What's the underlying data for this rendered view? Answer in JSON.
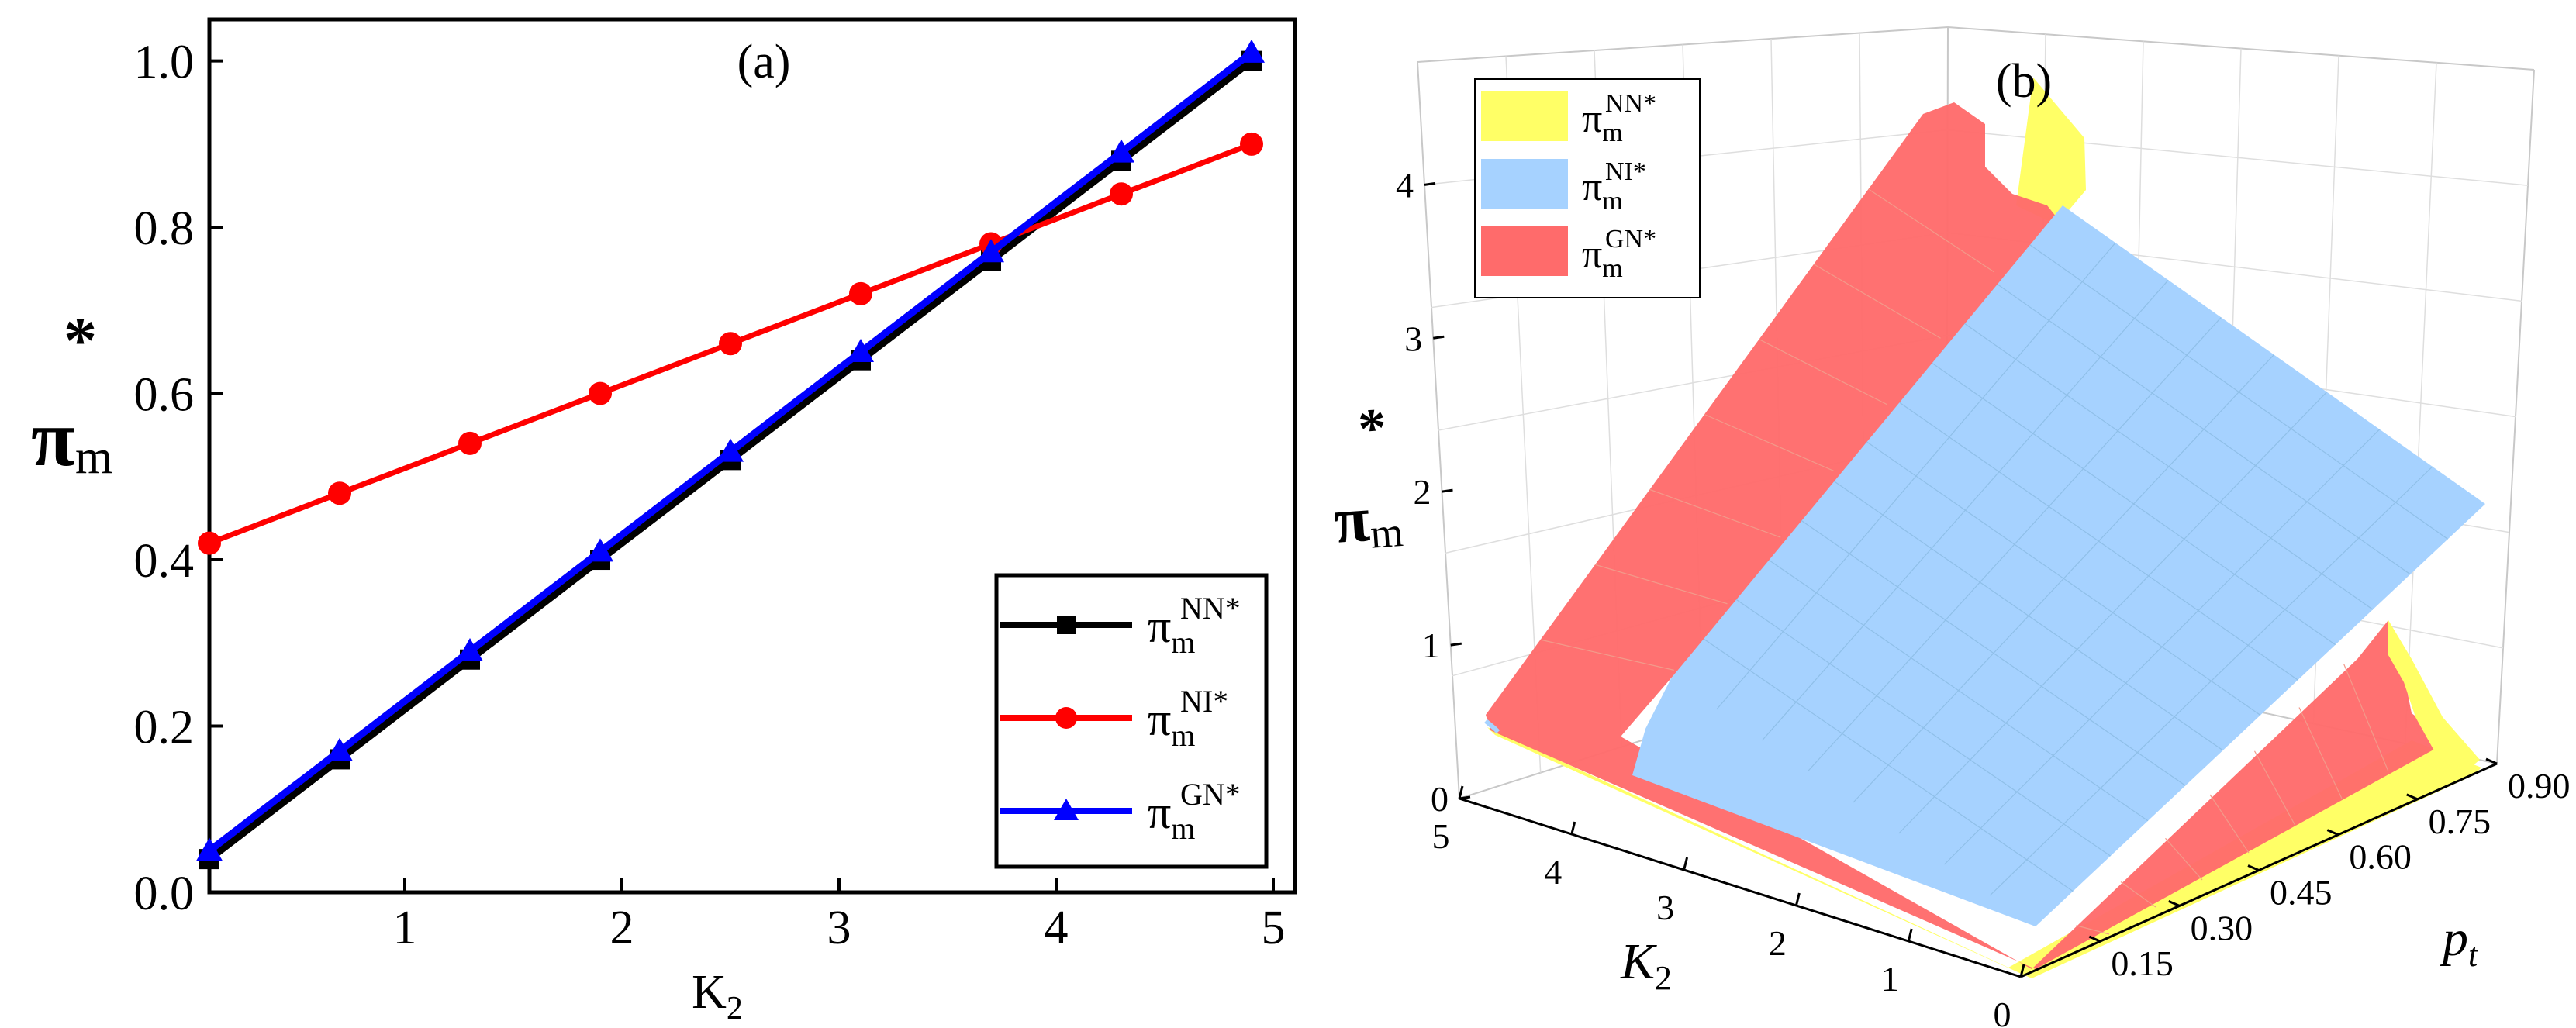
{
  "chart_data": [
    {
      "panel": "(a)",
      "type": "line",
      "xlabel": "K",
      "xlabel_sub": "2",
      "ylabel": "π",
      "ylabel_sub": "m",
      "ylabel_sup": "*",
      "xlim": [
        0.1,
        5.1
      ],
      "ylim": [
        0.0,
        1.05
      ],
      "xticks": [
        1,
        2,
        3,
        4,
        5
      ],
      "yticks": [
        0.0,
        0.2,
        0.4,
        0.6,
        0.8,
        1.0
      ],
      "xtick_labels": [
        "1",
        "2",
        "3",
        "4",
        "5"
      ],
      "ytick_labels": [
        "0.0",
        "0.2",
        "0.4",
        "0.6",
        "0.8",
        "1.0"
      ],
      "grid": false,
      "legend_position": "bottom-right",
      "x": [
        0.1,
        0.7,
        1.3,
        1.9,
        2.5,
        3.1,
        3.7,
        4.3,
        4.9
      ],
      "series": [
        {
          "name": "NN*",
          "base": "π",
          "sub": "m",
          "sup": "NN*",
          "color": "#000000",
          "marker": "square",
          "values": [
            0.04,
            0.16,
            0.28,
            0.4,
            0.52,
            0.64,
            0.76,
            0.88,
            1.0
          ]
        },
        {
          "name": "NI*",
          "base": "π",
          "sub": "m",
          "sup": "NI*",
          "color": "#ff0000",
          "marker": "circle",
          "values": [
            0.42,
            0.48,
            0.54,
            0.6,
            0.66,
            0.72,
            0.78,
            0.84,
            0.9
          ]
        },
        {
          "name": "GN*",
          "base": "π",
          "sub": "m",
          "sup": "GN*",
          "color": "#0000ff",
          "marker": "triangle",
          "values": [
            0.05,
            0.17,
            0.29,
            0.41,
            0.53,
            0.65,
            0.77,
            0.89,
            1.01
          ]
        }
      ]
    },
    {
      "panel": "(b)",
      "type": "surface3d",
      "zlabel": "π",
      "zlabel_sub": "m",
      "zlabel_sup": "*",
      "xlabel": "K",
      "xlabel_sub": "2",
      "ylabel": "p",
      "ylabel_sub": "t",
      "zticks": [
        "0",
        "1",
        "2",
        "3",
        "4"
      ],
      "xticks": [
        "0",
        "1",
        "2",
        "3",
        "4",
        "5"
      ],
      "yticks": [
        "0.15",
        "0.30",
        "0.45",
        "0.60",
        "0.75",
        "0.90"
      ],
      "xlim": [
        0,
        5
      ],
      "ylim": [
        0,
        0.9
      ],
      "zlim": [
        0,
        4.8
      ],
      "legend_position": "top-left",
      "series": [
        {
          "name": "NN*",
          "base": "π",
          "sub": "m",
          "sup": "NN*",
          "color": "#ffff66"
        },
        {
          "name": "NI*",
          "base": "π",
          "sub": "m",
          "sup": "NI*",
          "color": "#a6d2ff"
        },
        {
          "name": "GN*",
          "base": "π",
          "sub": "m",
          "sup": "GN*",
          "color": "#ff6b6b"
        }
      ]
    }
  ]
}
